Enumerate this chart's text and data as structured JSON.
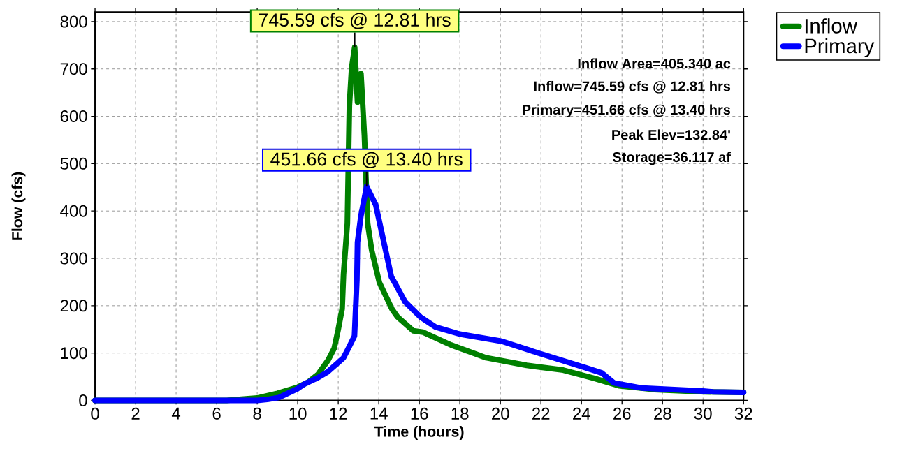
{
  "chart_data": {
    "type": "line",
    "xlabel": "Time  (hours)",
    "ylabel": "Flow  (cfs)",
    "xlim": [
      0,
      32
    ],
    "ylim": [
      0,
      820
    ],
    "xticks": [
      0,
      2,
      4,
      6,
      8,
      10,
      12,
      14,
      16,
      18,
      20,
      22,
      24,
      26,
      28,
      30,
      32
    ],
    "yticks": [
      0,
      100,
      200,
      300,
      400,
      500,
      600,
      700,
      800
    ],
    "grid": true,
    "legend": "top right",
    "line_style": "solid",
    "series": [
      {
        "name": "Inflow",
        "color": "#008000",
        "x": [
          0,
          6.5,
          7,
          8,
          9,
          10,
          10.5,
          11,
          11.5,
          11.8,
          12.0,
          12.19,
          12.26,
          12.45,
          12.55,
          12.66,
          12.81,
          12.95,
          13.12,
          13.29,
          13.45,
          13.65,
          14.03,
          14.65,
          14.93,
          15.7,
          16.19,
          17.57,
          19.3,
          21.3,
          23.1,
          24.6,
          25.85,
          27.6,
          30.1,
          32
        ],
        "values": [
          0,
          0,
          2,
          5,
          15,
          28,
          38,
          55,
          85,
          110,
          150,
          193,
          266,
          374,
          623,
          702,
          745.59,
          630,
          690,
          560,
          374,
          317,
          249,
          193,
          176,
          147,
          144,
          117,
          90,
          74,
          64,
          47,
          31,
          23,
          18,
          17
        ]
      },
      {
        "name": "Primary",
        "color": "#0000ff",
        "x": [
          0,
          8,
          8.5,
          9.07,
          10,
          10.3,
          11,
          11.47,
          12,
          12.26,
          12.5,
          12.8,
          12.92,
          12.95,
          13.12,
          13.4,
          13.85,
          14.25,
          14.62,
          14.78,
          15.3,
          16.06,
          16.8,
          18,
          20.07,
          21.8,
          24.2,
          25,
          25.6,
          27,
          30,
          30.5,
          32
        ],
        "values": [
          0,
          0,
          2,
          6,
          25,
          34,
          48,
          60,
          80,
          90,
          110,
          136,
          255,
          334,
          390,
          451.66,
          413,
          334,
          261,
          249,
          208,
          176,
          155,
          140,
          125,
          101,
          69,
          58,
          37,
          26,
          20,
          18,
          17
        ]
      }
    ],
    "annotations": [
      {
        "text": "745.59 cfs @ 12.81 hrs",
        "x": 12.81,
        "y": 745.59
      },
      {
        "text": "451.66 cfs @ 13.40 hrs",
        "x": 13.4,
        "y": 451.66
      },
      "Inflow Area=405.340 ac",
      "Inflow=745.59 cfs @ 12.81 hrs",
      "Primary=451.66 cfs @ 13.40 hrs",
      "Peak Elev=132.84'",
      "Storage=36.117 af"
    ]
  }
}
